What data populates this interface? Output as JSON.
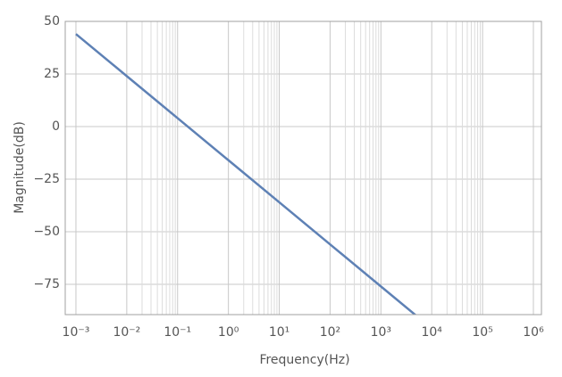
{
  "chart_data": {
    "type": "line",
    "x_label": "Frequency(Hz)",
    "y_label": "Magnitude(dB)",
    "x_scale": "log",
    "grid": true,
    "xlim": [
      0.000616,
      1440000
    ],
    "ylim": [
      -89.4,
      50
    ],
    "xticks": [
      {
        "value": 0.001,
        "label": "10⁻³"
      },
      {
        "value": 0.01,
        "label": "10⁻²"
      },
      {
        "value": 0.1,
        "label": "10⁻¹"
      },
      {
        "value": 1,
        "label": "10⁰"
      },
      {
        "value": 10,
        "label": "10¹"
      },
      {
        "value": 100,
        "label": "10²"
      },
      {
        "value": 1000,
        "label": "10³"
      },
      {
        "value": 10000,
        "label": "10⁴"
      },
      {
        "value": 100000,
        "label": "10⁵"
      },
      {
        "value": 1000000,
        "label": "10⁶"
      }
    ],
    "yticks": [
      50,
      25,
      0,
      {
        "value": -25,
        "label": "−25"
      },
      {
        "value": -50,
        "label": "−50"
      },
      {
        "value": -75,
        "label": "−75"
      }
    ],
    "x": [
      0.001,
      0.01,
      0.1,
      1,
      10,
      100,
      1000,
      5500
    ],
    "series": [
      {
        "name": "Magnitude",
        "color": "#5e81b5",
        "values": [
          44,
          24,
          4,
          -16,
          -36,
          -56,
          -76,
          -90.8
        ]
      }
    ]
  }
}
